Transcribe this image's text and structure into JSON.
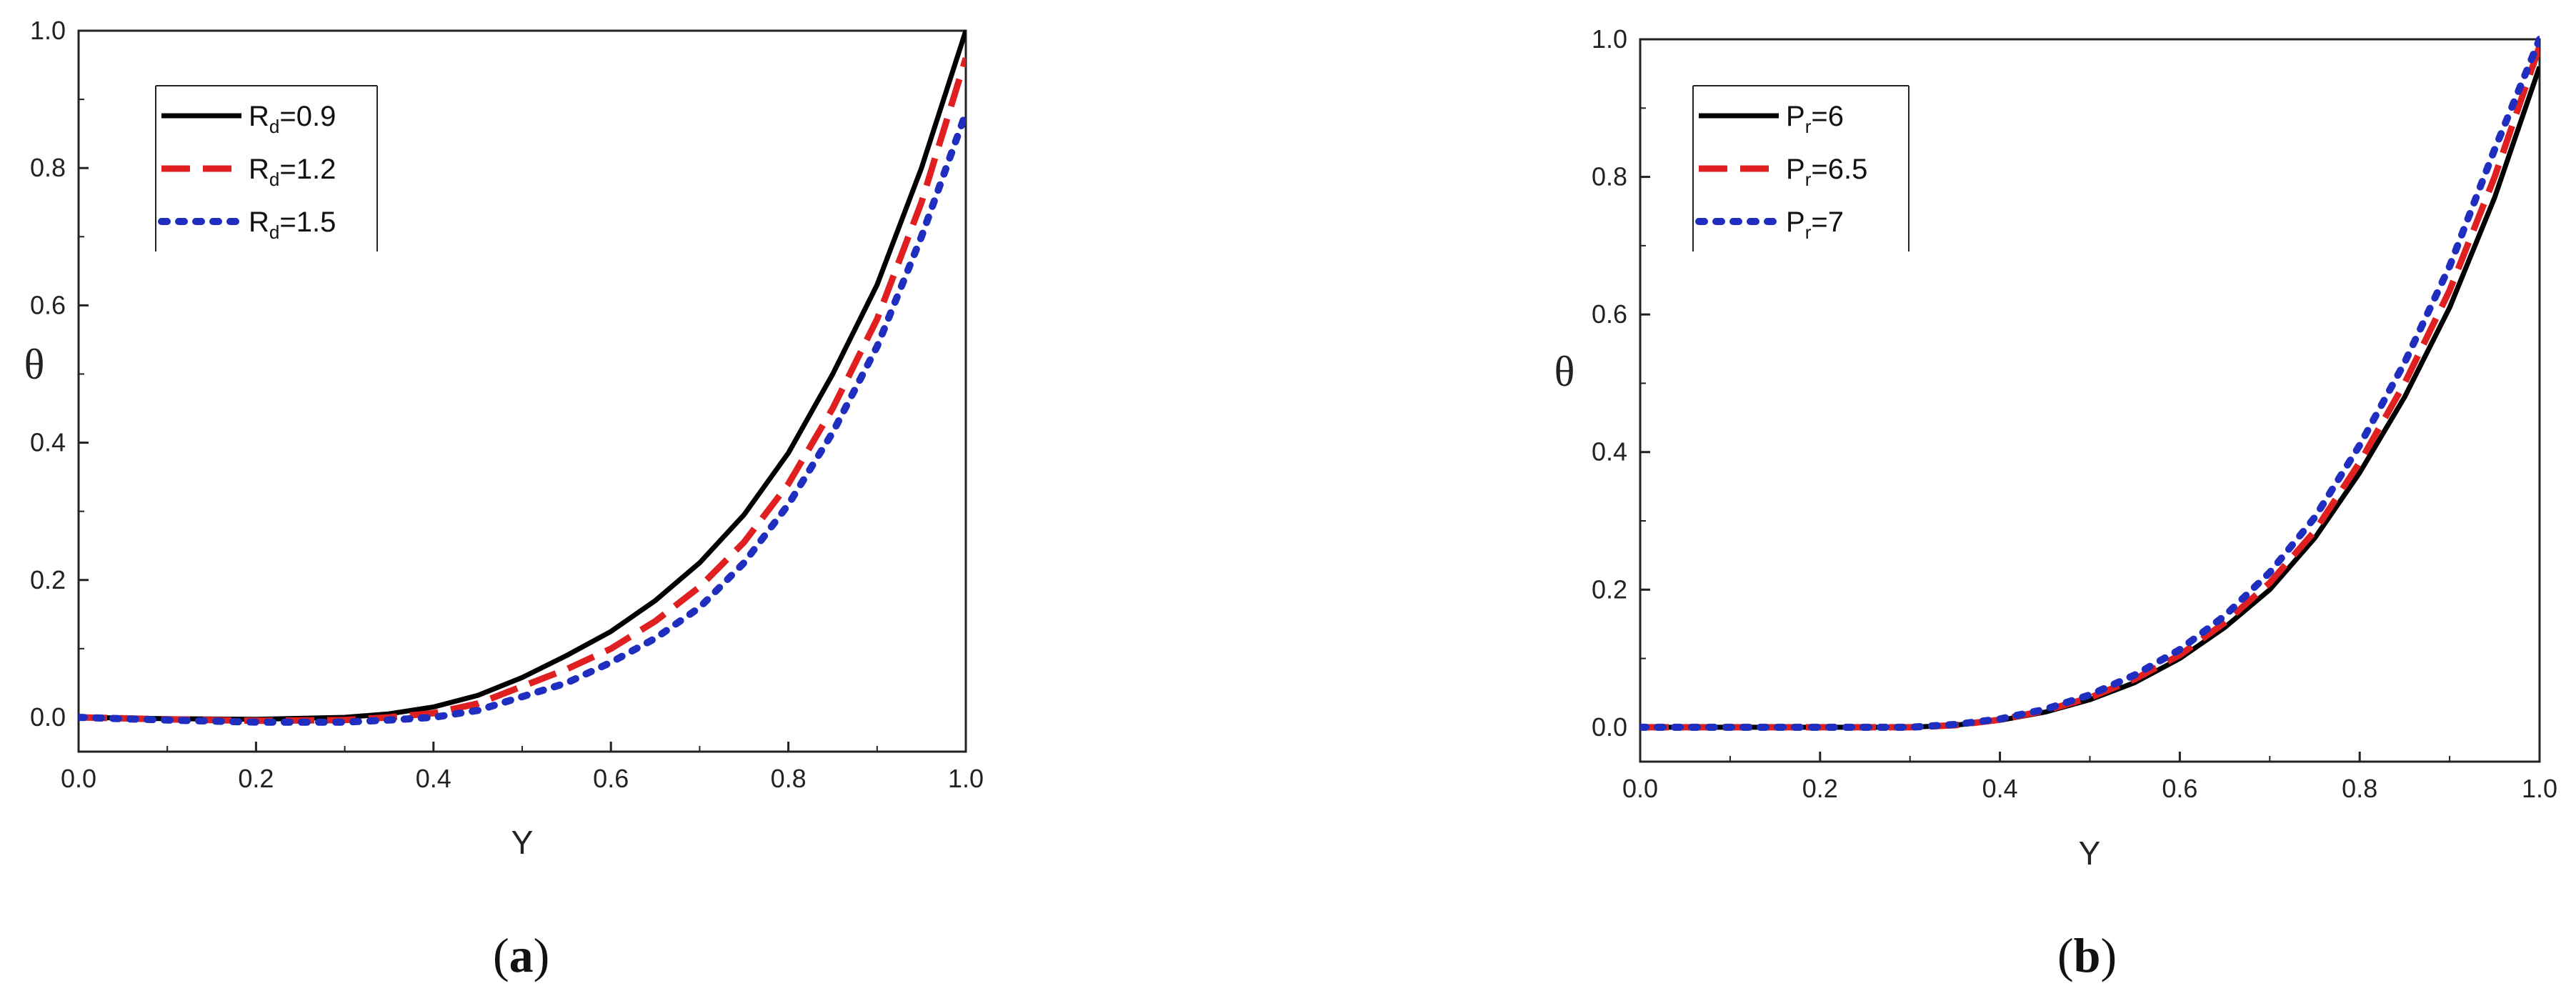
{
  "chart_data": [
    {
      "type": "line",
      "panel_label": "a",
      "xlabel": "Y",
      "ylabel": "θ",
      "xlim": [
        0.0,
        1.0
      ],
      "ylim": [
        -0.05,
        1.0
      ],
      "xticks": [
        0.0,
        0.2,
        0.4,
        0.6,
        0.8,
        1.0
      ],
      "yticks": [
        0.0,
        0.2,
        0.4,
        0.6,
        0.8,
        1.0
      ],
      "xtick_labels": [
        "0.0",
        "0.2",
        "0.4",
        "0.6",
        "0.8",
        "1.0"
      ],
      "ytick_labels": [
        "0.0",
        "0.2",
        "0.4",
        "0.6",
        "0.8",
        "1.0"
      ],
      "legend_position": "top-left",
      "x": [
        0.0,
        0.1,
        0.2,
        0.3,
        0.35,
        0.4,
        0.45,
        0.5,
        0.55,
        0.6,
        0.65,
        0.7,
        0.75,
        0.8,
        0.85,
        0.9,
        0.95,
        1.0
      ],
      "series": [
        {
          "name": "Rd=0.9",
          "base": "R",
          "sub": "d",
          "rest": "=0.9",
          "color": "#000000",
          "style": "solid",
          "values": [
            0.0,
            -0.002,
            -0.003,
            0.0,
            0.005,
            0.015,
            0.032,
            0.058,
            0.09,
            0.125,
            0.17,
            0.225,
            0.295,
            0.385,
            0.5,
            0.63,
            0.8,
            1.0
          ]
        },
        {
          "name": "Rd=1.2",
          "base": "R",
          "sub": "d",
          "rest": "=1.2",
          "color": "#e02020",
          "style": "dashed",
          "values": [
            0.0,
            -0.003,
            -0.005,
            -0.004,
            0.0,
            0.006,
            0.02,
            0.045,
            0.07,
            0.1,
            0.14,
            0.19,
            0.255,
            0.34,
            0.45,
            0.58,
            0.75,
            0.96
          ]
        },
        {
          "name": "Rd=1.5",
          "base": "R",
          "sub": "d",
          "rest": "=1.5",
          "color": "#1f2ebf",
          "style": "dotted",
          "values": [
            0.0,
            -0.004,
            -0.007,
            -0.007,
            -0.004,
            0.0,
            0.01,
            0.03,
            0.05,
            0.08,
            0.115,
            0.16,
            0.225,
            0.31,
            0.415,
            0.54,
            0.7,
            0.88
          ]
        }
      ]
    },
    {
      "type": "line",
      "panel_label": "b",
      "xlabel": "Y",
      "ylabel": "θ",
      "xlim": [
        0.0,
        1.0
      ],
      "ylim": [
        -0.05,
        1.0
      ],
      "xticks": [
        0.0,
        0.2,
        0.4,
        0.6,
        0.8,
        1.0
      ],
      "yticks": [
        0.0,
        0.2,
        0.4,
        0.6,
        0.8,
        1.0
      ],
      "xtick_labels": [
        "0.0",
        "0.2",
        "0.4",
        "0.6",
        "0.8",
        "1.0"
      ],
      "ytick_labels": [
        "0.0",
        "0.2",
        "0.4",
        "0.6",
        "0.8",
        "1.0"
      ],
      "legend_position": "top-left",
      "x": [
        0.0,
        0.1,
        0.2,
        0.3,
        0.35,
        0.4,
        0.45,
        0.5,
        0.55,
        0.6,
        0.65,
        0.7,
        0.75,
        0.8,
        0.85,
        0.9,
        0.95,
        1.0
      ],
      "series": [
        {
          "name": "Pr=6",
          "base": "P",
          "sub": "r",
          "rest": "=6",
          "color": "#000000",
          "style": "solid",
          "values": [
            0.0,
            0.0,
            0.0,
            0.0,
            0.003,
            0.01,
            0.022,
            0.04,
            0.065,
            0.1,
            0.145,
            0.2,
            0.275,
            0.37,
            0.48,
            0.61,
            0.77,
            0.96
          ]
        },
        {
          "name": "Pr=6.5",
          "base": "P",
          "sub": "r",
          "rest": "=6.5",
          "color": "#e02020",
          "style": "dashed",
          "values": [
            0.0,
            0.0,
            0.0,
            0.0,
            0.003,
            0.011,
            0.024,
            0.043,
            0.07,
            0.105,
            0.152,
            0.21,
            0.285,
            0.385,
            0.5,
            0.635,
            0.8,
            0.99
          ]
        },
        {
          "name": "Pr=7",
          "base": "P",
          "sub": "r",
          "rest": "=7",
          "color": "#1f2ebf",
          "style": "dotted",
          "values": [
            0.0,
            0.0,
            0.0,
            0.0,
            0.004,
            0.012,
            0.026,
            0.047,
            0.076,
            0.113,
            0.162,
            0.225,
            0.305,
            0.41,
            0.53,
            0.67,
            0.84,
            1.0
          ]
        }
      ]
    }
  ]
}
